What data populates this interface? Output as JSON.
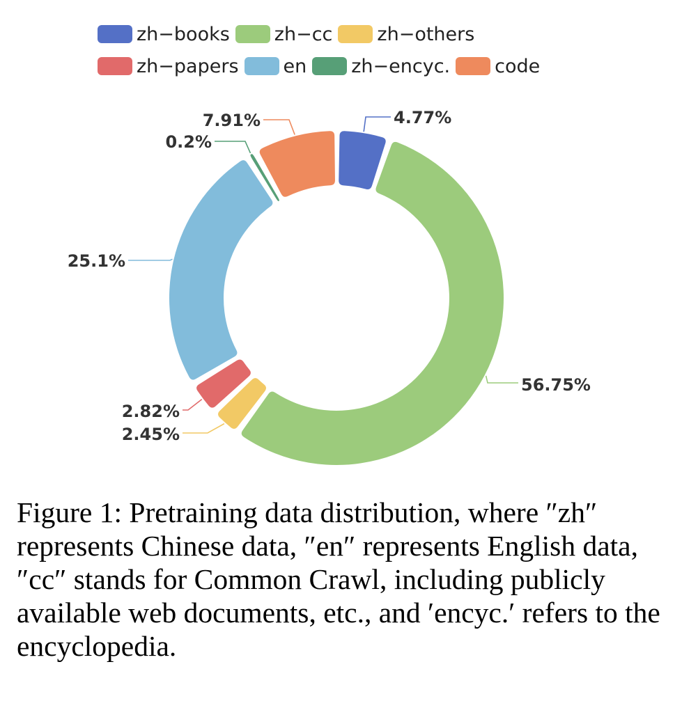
{
  "chart_data": {
    "type": "pie",
    "variant": "donut",
    "legend_position": "top",
    "categories": [
      "zh-books",
      "zh-cc",
      "zh-others",
      "zh-papers",
      "en",
      "zh-encyc.",
      "code"
    ],
    "values": [
      4.77,
      56.75,
      2.45,
      2.82,
      25.1,
      0.2,
      7.91
    ],
    "labels": [
      "4.77%",
      "56.75%",
      "2.45%",
      "2.82%",
      "25.1%",
      "0.2%",
      "7.91%"
    ],
    "colors": [
      "#5470c6",
      "#9ccb7c",
      "#f2c965",
      "#e16a6a",
      "#82bcdb",
      "#579f77",
      "#ee8a5d"
    ]
  },
  "legend": {
    "rows": [
      [
        {
          "label": "zh−books",
          "color": "#5470c6"
        },
        {
          "label": "zh−cc",
          "color": "#9ccb7c"
        },
        {
          "label": "zh−others",
          "color": "#f2c965"
        }
      ],
      [
        {
          "label": "zh−papers",
          "color": "#e16a6a"
        },
        {
          "label": "en",
          "color": "#82bcdb"
        },
        {
          "label": "zh−encyc.",
          "color": "#579f77"
        },
        {
          "label": "code",
          "color": "#ee8a5d"
        }
      ]
    ]
  },
  "caption": {
    "text": "Figure 1: Pretraining data distribution, where ″zh″ represents Chinese data, ″en″ represents English data, ″cc″ stands for Common Crawl, including publicly available web documents, etc., and ′encyc.′ refers to the encyclopedia."
  }
}
